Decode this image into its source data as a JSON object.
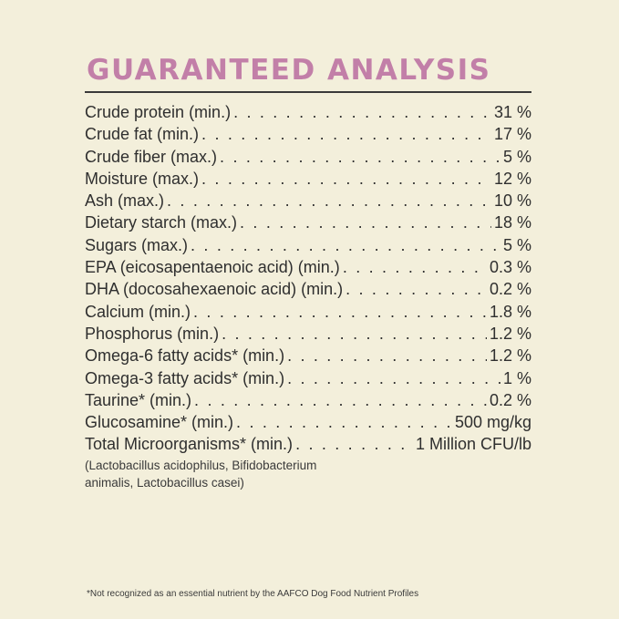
{
  "title": "GUARANTEED ANALYSIS",
  "rows": [
    {
      "label": "Crude protein (min.)",
      "value": "31 %"
    },
    {
      "label": "Crude fat (min.)",
      "value": "17 %"
    },
    {
      "label": "Crude fiber (max.)",
      "value": "5 %"
    },
    {
      "label": "Moisture (max.)",
      "value": "12 %"
    },
    {
      "label": "Ash (max.)",
      "value": "10 %"
    },
    {
      "label": "Dietary starch (max.)",
      "value": "18 %"
    },
    {
      "label": "Sugars (max.)",
      "value": "5 %"
    },
    {
      "label": "EPA (eicosapentaenoic acid) (min.)",
      "value": "0.3 %"
    },
    {
      "label": "DHA (docosahexaenoic acid) (min.)",
      "value": "0.2 %"
    },
    {
      "label": "Calcium (min.)",
      "value": "1.8 %"
    },
    {
      "label": "Phosphorus (min.)",
      "value": "1.2 %"
    },
    {
      "label": "Omega-6 fatty acids* (min.)",
      "value": "1.2 %"
    },
    {
      "label": "Omega-3 fatty acids* (min.)",
      "value": "1 %"
    },
    {
      "label": "Taurine* (min.)",
      "value": "0.2 %"
    },
    {
      "label": "Glucosamine* (min.)",
      "value": "500 mg/kg"
    },
    {
      "label": "Total Microorganisms* (min.)",
      "value": "1 Million CFU/lb"
    }
  ],
  "microorganisms_note": "(Lactobacillus acidophilus, Bifidobacterium animalis, Lactobacillus casei)",
  "footnote": "*Not recognized as an essential nutrient by the AAFCO Dog Food Nutrient Profiles",
  "colors": {
    "title": "#c27fa8",
    "background": "#f3efdb",
    "text": "#2f2f2f"
  }
}
